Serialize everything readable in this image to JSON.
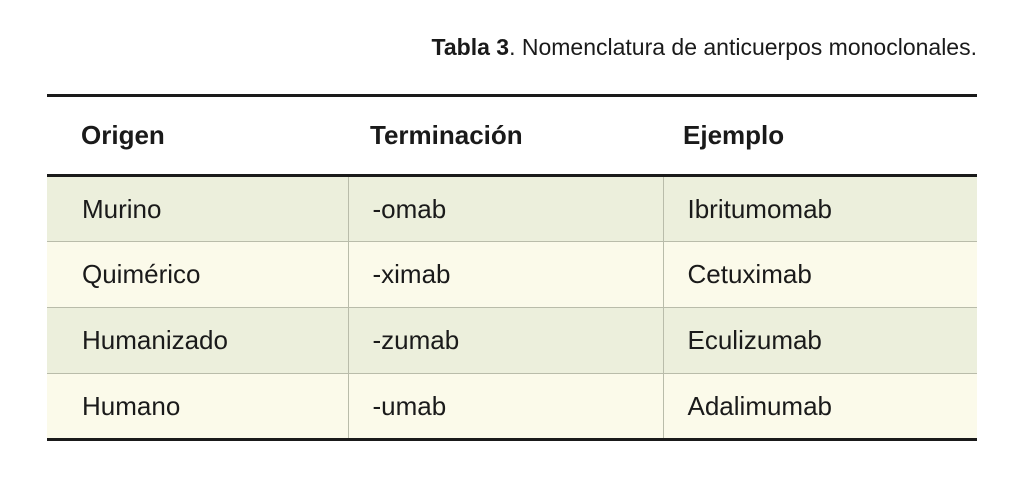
{
  "caption": {
    "label": "Tabla 3",
    "text": ". Nomenclatura de anticuerpos monoclonales."
  },
  "table": {
    "headers": [
      "Origen",
      "Terminación",
      "Ejemplo"
    ],
    "rows": [
      [
        "Murino",
        "-omab",
        "Ibritumomab"
      ],
      [
        "Quimérico",
        "-ximab",
        "Cetuximab"
      ],
      [
        "Humanizado",
        "-zumab",
        "Eculizumab"
      ],
      [
        "Humano",
        "-umab",
        "Adalimumab"
      ]
    ]
  },
  "colors": {
    "row_green": "#ecefdc",
    "row_cream": "#fbfaea",
    "rule": "#1a1a1a"
  }
}
